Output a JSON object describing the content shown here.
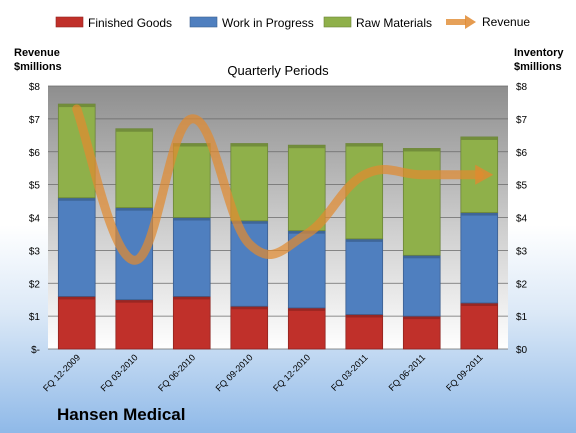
{
  "chart_data": {
    "type": "bar",
    "stacked": true,
    "title": "Quarterly Periods",
    "brand": "Hansen Medical",
    "y_left_label": [
      "Revenue",
      "$millions"
    ],
    "y_right_label": [
      "Inventory",
      "$millions"
    ],
    "ylim": [
      0,
      8
    ],
    "y_ticks_left": [
      "$-",
      "$1",
      "$2",
      "$3",
      "$4",
      "$5",
      "$6",
      "$7",
      "$8"
    ],
    "y_ticks_right": [
      "$0",
      "$1",
      "$2",
      "$3",
      "$4",
      "$5",
      "$6",
      "$7",
      "$8"
    ],
    "grid": true,
    "legend_position": "top",
    "categories": [
      "FQ 12-2009",
      "FQ 03-2010",
      "FQ 06-2010",
      "FQ 09-2010",
      "FQ 12-2010",
      "FQ 03-2011",
      "FQ 06-2011",
      "FQ 09-2011"
    ],
    "series": [
      {
        "name": "Finished Goods",
        "kind": "bar",
        "color": "#c0302a",
        "values": [
          1.6,
          1.5,
          1.6,
          1.3,
          1.25,
          1.05,
          1.0,
          1.4
        ]
      },
      {
        "name": "Work in Progress",
        "kind": "bar",
        "color": "#4f7fbf",
        "values": [
          3.0,
          2.8,
          2.4,
          2.6,
          2.35,
          2.3,
          1.85,
          2.75
        ]
      },
      {
        "name": "Raw Materials",
        "kind": "bar",
        "color": "#8fb04a",
        "values": [
          2.85,
          2.4,
          2.25,
          2.35,
          2.6,
          2.9,
          3.25,
          2.3
        ]
      },
      {
        "name": "Revenue",
        "kind": "line",
        "color": "#e08a30",
        "values": [
          7.3,
          2.7,
          7.0,
          3.2,
          3.5,
          5.3,
          5.3,
          5.3
        ]
      }
    ]
  }
}
